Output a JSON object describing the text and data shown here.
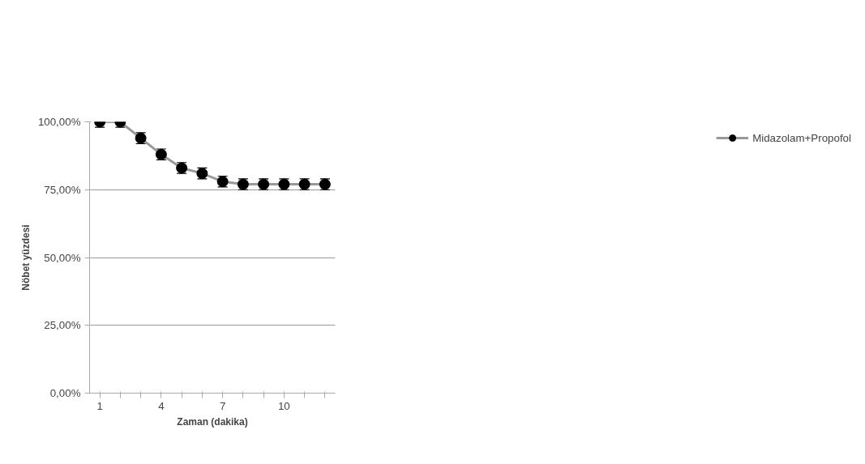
{
  "chart_data": {
    "type": "line",
    "xlabel": "Zaman (dakika)",
    "ylabel": "Nöbet yüzdesi",
    "categories": [
      "1",
      null,
      null,
      "4",
      null,
      null,
      "7",
      null,
      null,
      "10",
      null,
      null
    ],
    "series": [
      {
        "name": "Midazolam+Propofol",
        "color": "#999999",
        "colors": [
          "#000000",
          "#000000",
          "#000000",
          "#000000",
          "#000000",
          "#000000",
          "#000000",
          "#000000",
          "#000000",
          "#000000",
          "#000000",
          "#000000"
        ],
        "values": [
          100,
          100,
          94,
          88,
          83,
          81,
          78,
          77,
          77,
          77,
          77,
          77
        ],
        "errors": [
          [
            98,
            100
          ],
          [
            98,
            100
          ],
          2,
          2,
          2,
          2,
          2,
          2,
          2,
          2,
          2,
          2
        ]
      }
    ],
    "ylim": [
      0,
      100
    ],
    "yticks": [
      {
        "value": 0,
        "label": "0,00%"
      },
      {
        "value": 25,
        "label": "25,00%"
      },
      {
        "value": 50,
        "label": "50,00%"
      },
      {
        "value": 75,
        "label": "75,00%"
      },
      {
        "value": 100,
        "label": "100,00%"
      }
    ],
    "grid": "y",
    "legend": "right",
    "marker": "circle",
    "line_style": "solid"
  }
}
